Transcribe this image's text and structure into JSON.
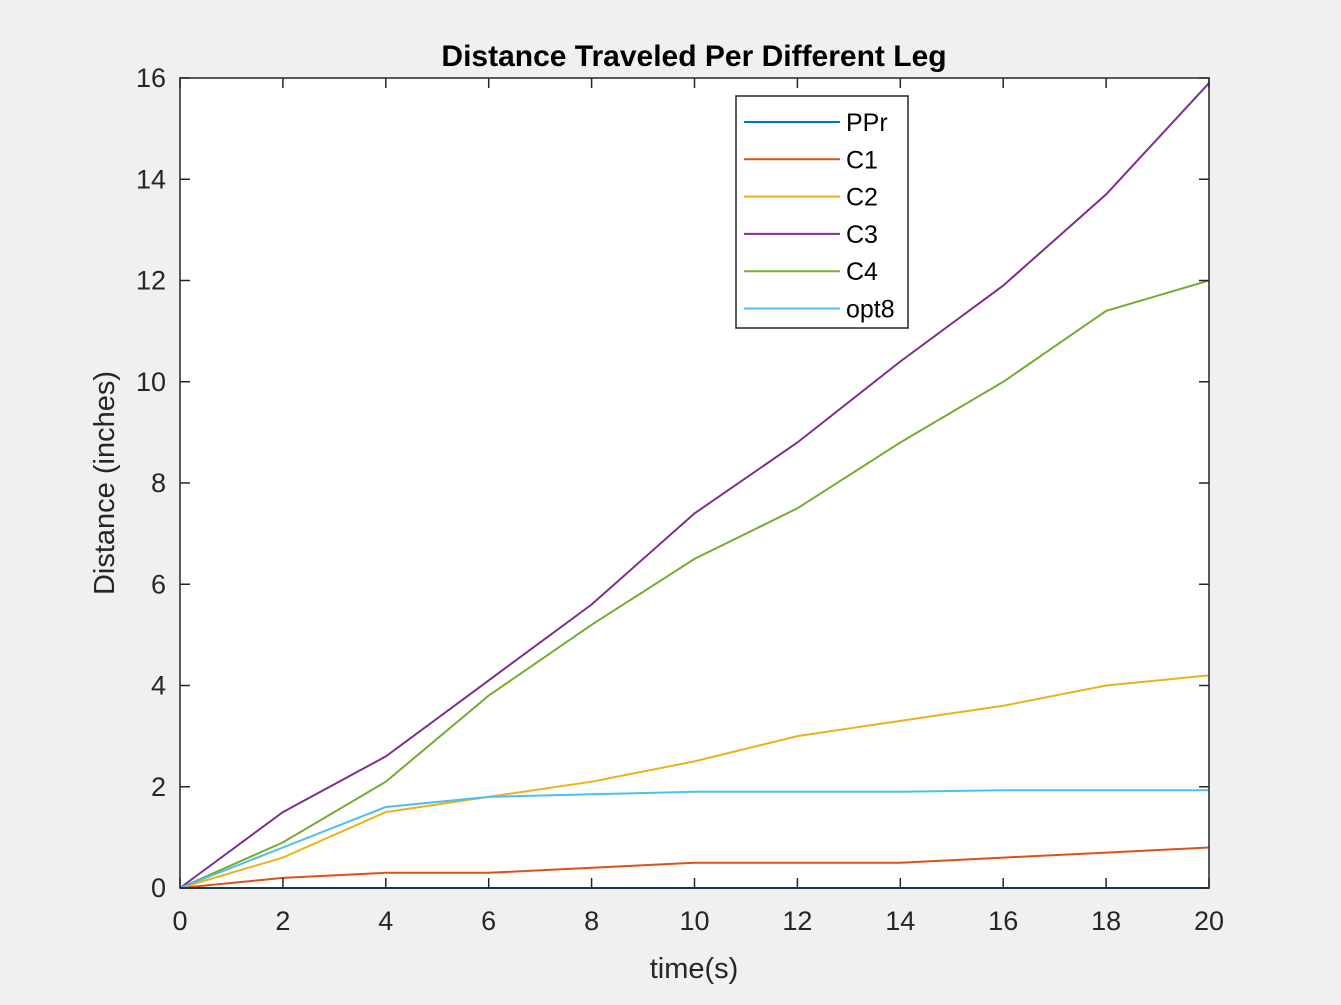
{
  "chart_data": {
    "type": "line",
    "title": "Distance Traveled Per Different Leg",
    "xlabel": "time(s)",
    "ylabel": "Distance (inches)",
    "xlim": [
      0,
      20
    ],
    "ylim": [
      0,
      16
    ],
    "x_ticks": [
      0,
      2,
      4,
      6,
      8,
      10,
      12,
      14,
      16,
      18,
      20
    ],
    "y_ticks": [
      0,
      2,
      4,
      6,
      8,
      10,
      12,
      14,
      16
    ],
    "grid": false,
    "legend_placement": "top-center",
    "x": [
      0,
      2,
      4,
      6,
      8,
      10,
      12,
      14,
      16,
      18,
      20
    ],
    "series": [
      {
        "name": "PPr",
        "color": "#0072BD",
        "values": [
          0,
          0,
          0,
          0,
          0,
          0,
          0,
          0,
          0,
          0,
          0
        ]
      },
      {
        "name": "C1",
        "color": "#D95319",
        "values": [
          0,
          0.2,
          0.3,
          0.3,
          0.4,
          0.5,
          0.5,
          0.5,
          0.6,
          0.7,
          0.8
        ]
      },
      {
        "name": "C2",
        "color": "#EDB120",
        "values": [
          0,
          0.6,
          1.5,
          1.8,
          2.1,
          2.5,
          3.0,
          3.3,
          3.6,
          4.0,
          4.2
        ]
      },
      {
        "name": "C3",
        "color": "#7E2F8E",
        "values": [
          0,
          1.5,
          2.6,
          4.1,
          5.6,
          7.4,
          8.8,
          10.4,
          11.9,
          13.7,
          15.9
        ]
      },
      {
        "name": "C4",
        "color": "#77AC30",
        "values": [
          0,
          0.9,
          2.1,
          3.8,
          5.2,
          6.5,
          7.5,
          8.8,
          10.0,
          11.4,
          12.0
        ]
      },
      {
        "name": "opt8",
        "color": "#4DBEEE",
        "values": [
          0,
          0.8,
          1.6,
          1.8,
          1.85,
          1.9,
          1.9,
          1.9,
          1.93,
          1.93,
          1.93
        ]
      }
    ]
  }
}
